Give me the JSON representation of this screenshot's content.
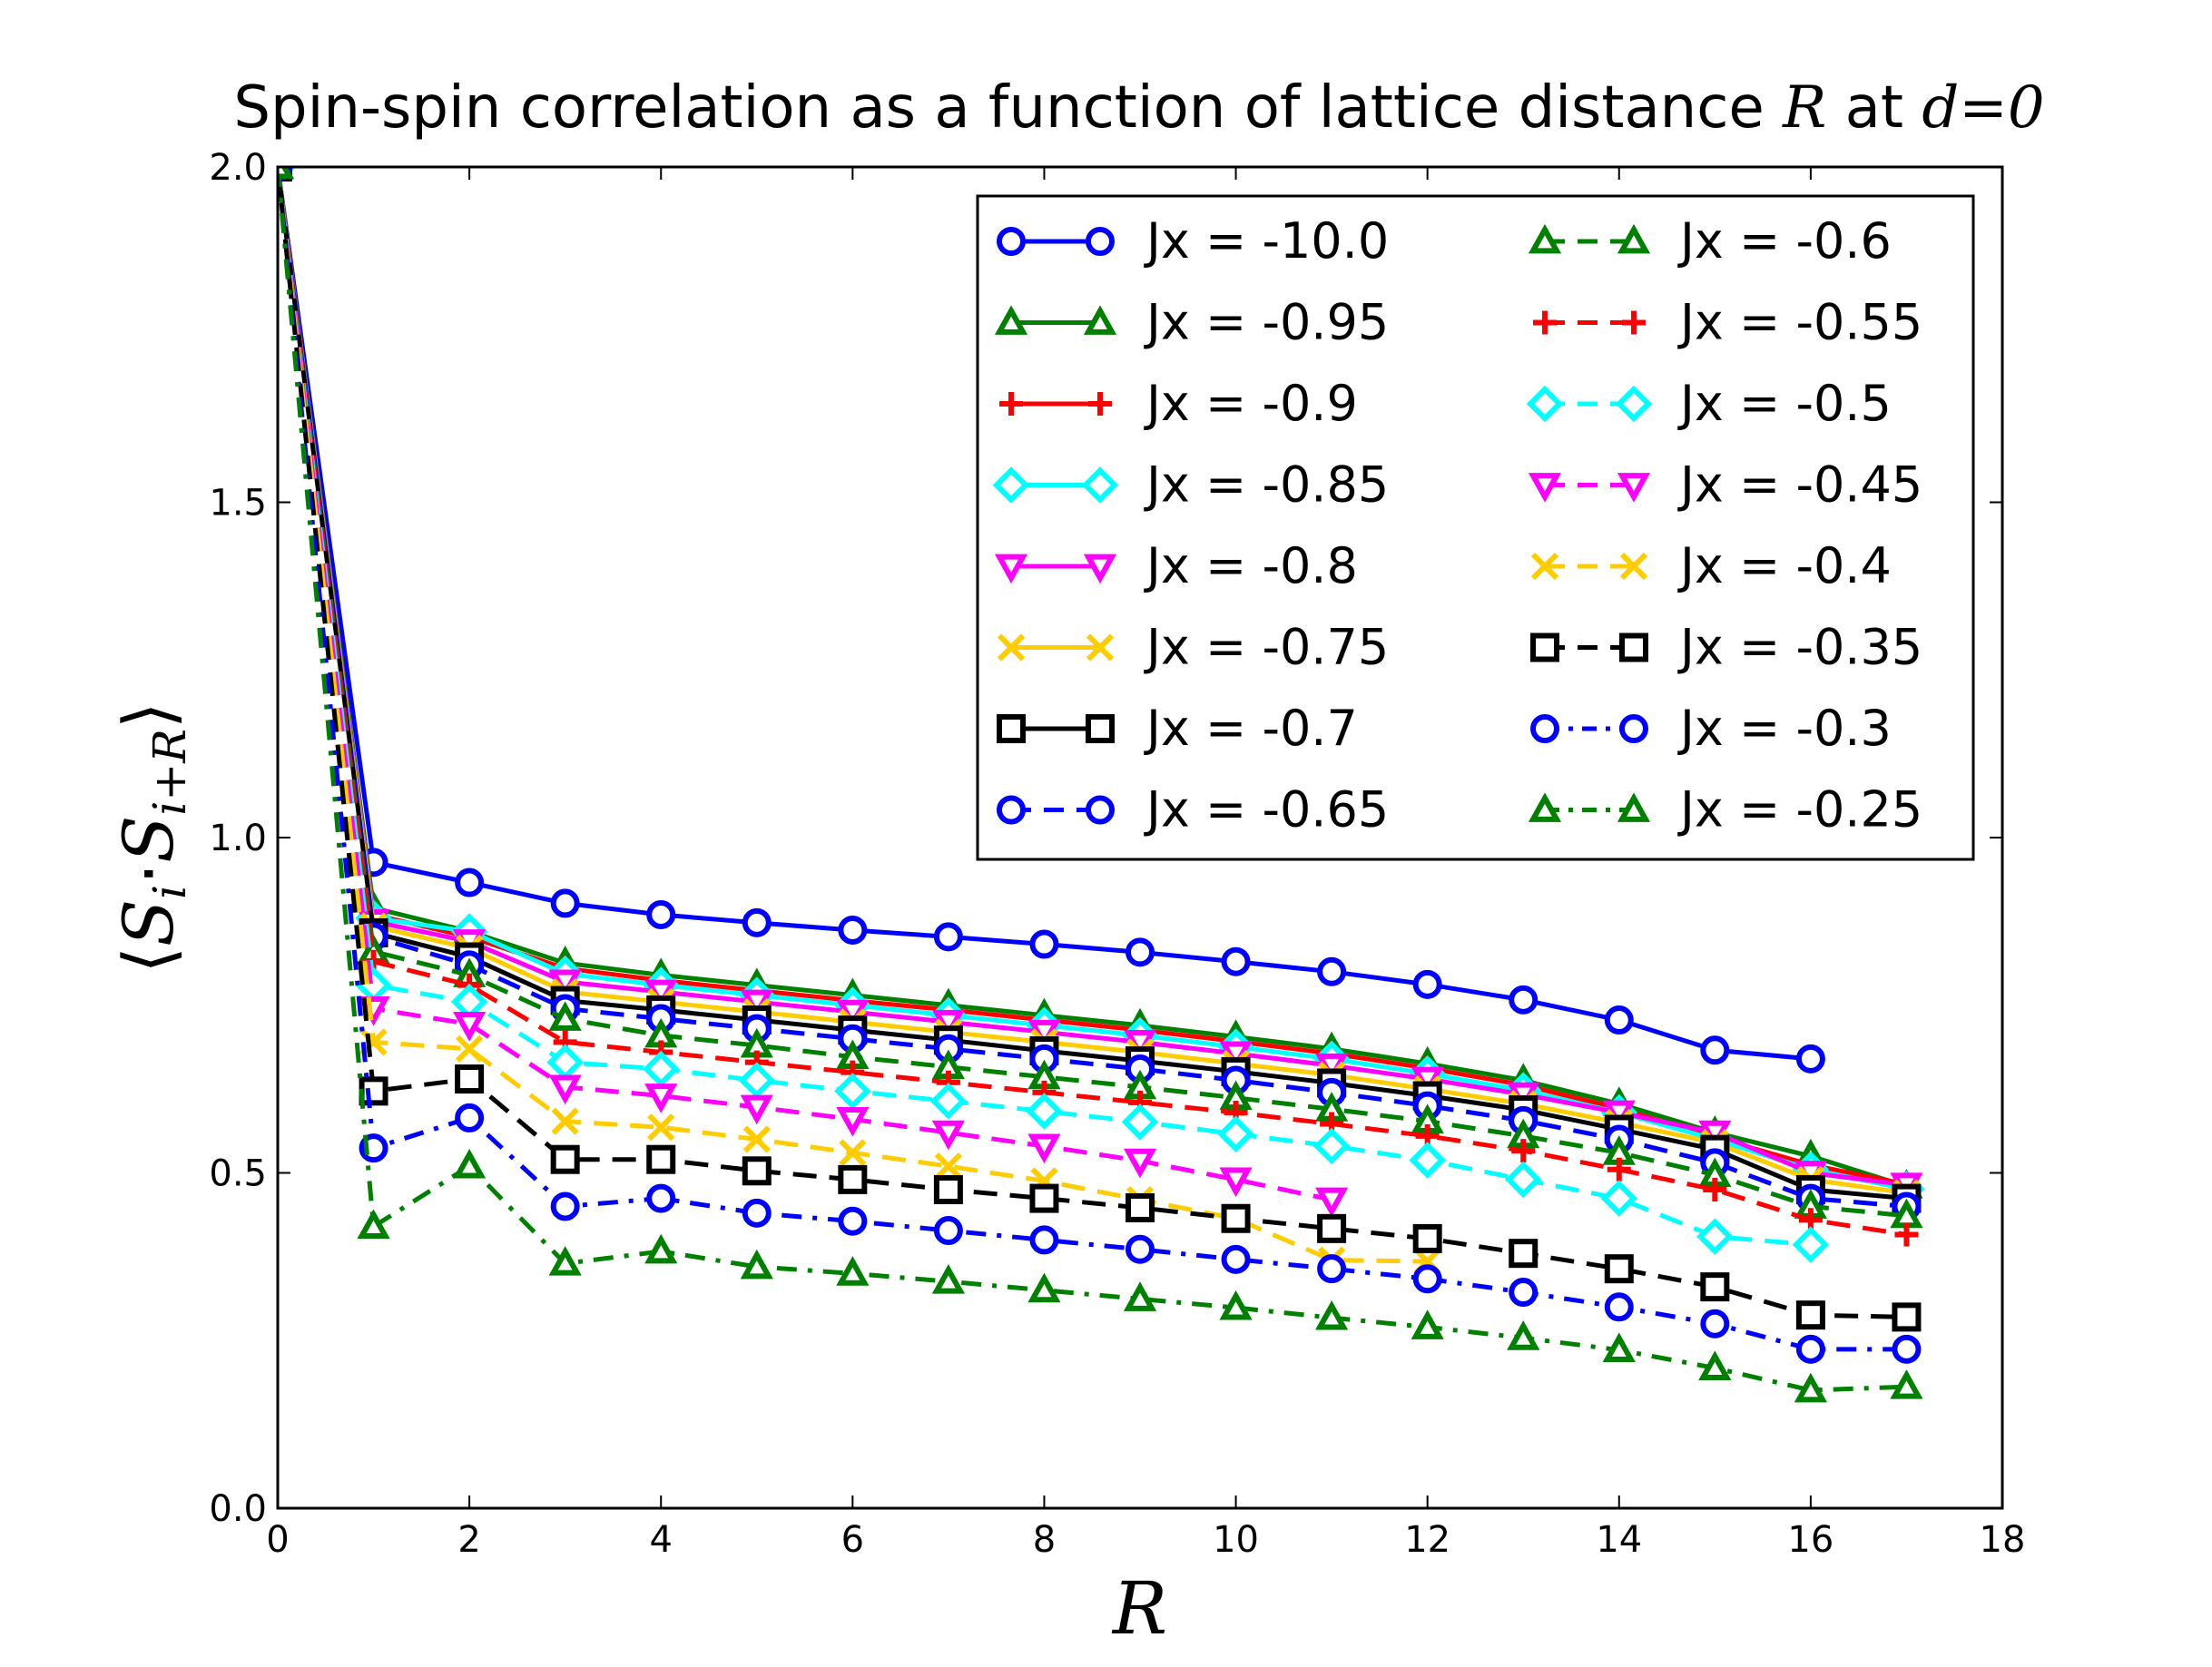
{
  "chart_data": {
    "type": "line",
    "title": "Spin-spin correlation as a function of lattice distance R at d=0",
    "title_parts": {
      "prefix": "Spin-spin correlation as a function of lattice distance ",
      "var": "R",
      "mid": " at ",
      "eq": "d=0"
    },
    "xlabel": "R",
    "ylabel": "⟨Sᵢ·Sᵢ₊R⟩",
    "ylabel_parts": {
      "open": "⟨",
      "s1": "S",
      "sub1": "i",
      "dot": "·",
      "s2": "S",
      "sub2": "i+R",
      "close": "⟩"
    },
    "xlim": [
      0,
      18
    ],
    "ylim": [
      0,
      2.0
    ],
    "xticks": [
      0,
      2,
      4,
      6,
      8,
      10,
      12,
      14,
      16,
      18
    ],
    "xtick_labels": [
      "0",
      "2",
      "4",
      "6",
      "8",
      "10",
      "12",
      "14",
      "16",
      "18"
    ],
    "yticks": [
      0,
      0.5,
      1.0,
      1.5,
      2.0
    ],
    "ytick_labels": [
      "0.0",
      "0.5",
      "1.0",
      "1.5",
      "2.0"
    ],
    "grid": false,
    "legend_position": "top-right",
    "legend_columns": 2,
    "series": [
      {
        "name": "Jx = -10.0",
        "color": "#0000ff",
        "marker": "circle",
        "dash": "solid",
        "x": [
          0,
          1,
          2,
          3,
          4,
          5,
          6,
          7,
          8,
          9,
          10,
          11,
          12,
          13,
          14,
          15,
          16
        ],
        "y": [
          2.0,
          0.963,
          0.933,
          0.902,
          0.885,
          0.873,
          0.862,
          0.852,
          0.841,
          0.829,
          0.815,
          0.8,
          0.781,
          0.758,
          0.728,
          0.683,
          0.67
        ]
      },
      {
        "name": "Jx = -0.95",
        "color": "#008000",
        "marker": "triangle-up",
        "dash": "solid",
        "x": [
          0,
          1,
          2,
          3,
          4,
          5,
          6,
          7,
          8,
          9,
          10,
          11,
          12,
          13,
          14,
          15,
          16,
          17
        ],
        "y": [
          2.0,
          0.895,
          0.86,
          0.813,
          0.795,
          0.78,
          0.765,
          0.75,
          0.735,
          0.72,
          0.703,
          0.685,
          0.663,
          0.638,
          0.603,
          0.56,
          0.525,
          0.48
        ]
      },
      {
        "name": "Jx = -0.9",
        "color": "#ff0000",
        "marker": "plus",
        "dash": "solid",
        "x": [
          0,
          1,
          2,
          3,
          4,
          5,
          6,
          7,
          8,
          9,
          10,
          11,
          12,
          13,
          14,
          15,
          16,
          17
        ],
        "y": [
          2.0,
          0.885,
          0.852,
          0.805,
          0.787,
          0.772,
          0.757,
          0.743,
          0.728,
          0.713,
          0.696,
          0.678,
          0.656,
          0.631,
          0.596,
          0.553,
          0.512,
          0.483
        ]
      },
      {
        "name": "Jx = -0.85",
        "color": "#00ffff",
        "marker": "diamond",
        "dash": "solid",
        "x": [
          0,
          1,
          2,
          3,
          4,
          5,
          6,
          7,
          8,
          9,
          10,
          11,
          12,
          13,
          14,
          15,
          16,
          17
        ],
        "y": [
          2.0,
          0.88,
          0.86,
          0.797,
          0.78,
          0.765,
          0.75,
          0.735,
          0.72,
          0.705,
          0.688,
          0.67,
          0.648,
          0.623,
          0.59,
          0.55,
          0.505,
          0.476
        ]
      },
      {
        "name": "Jx = -0.8",
        "color": "#ff00ff",
        "marker": "triangle-down",
        "dash": "solid",
        "x": [
          0,
          1,
          2,
          3,
          4,
          5,
          6,
          7,
          8,
          9,
          10,
          11,
          12,
          13,
          14,
          15,
          16,
          17
        ],
        "y": [
          2.0,
          0.875,
          0.845,
          0.785,
          0.77,
          0.755,
          0.74,
          0.725,
          0.71,
          0.695,
          0.678,
          0.66,
          0.64,
          0.617,
          0.59,
          0.56,
          0.5,
          0.482
        ]
      },
      {
        "name": "Jx = -0.75",
        "color": "#ffcc00",
        "marker": "x",
        "dash": "solid",
        "x": [
          0,
          1,
          2,
          3,
          4,
          5,
          6,
          7,
          8,
          9,
          10,
          11,
          12,
          13,
          14,
          15,
          16,
          17
        ],
        "y": [
          2.0,
          0.868,
          0.835,
          0.77,
          0.755,
          0.74,
          0.725,
          0.71,
          0.695,
          0.68,
          0.663,
          0.646,
          0.625,
          0.603,
          0.575,
          0.545,
          0.49,
          0.47
        ]
      },
      {
        "name": "Jx = -0.7",
        "color": "#000000",
        "marker": "square",
        "dash": "solid",
        "x": [
          0,
          1,
          2,
          3,
          4,
          5,
          6,
          7,
          8,
          9,
          10,
          11,
          12,
          13,
          14,
          15,
          16,
          17
        ],
        "y": [
          2.0,
          0.858,
          0.822,
          0.757,
          0.743,
          0.728,
          0.713,
          0.698,
          0.682,
          0.667,
          0.651,
          0.634,
          0.615,
          0.594,
          0.565,
          0.535,
          0.475,
          0.462
        ]
      },
      {
        "name": "Jx = -0.65",
        "color": "#0000ff",
        "marker": "circle",
        "dash": "dashed",
        "x": [
          0,
          1,
          2,
          3,
          4,
          5,
          6,
          7,
          8,
          9,
          10,
          11,
          12,
          13,
          14,
          15,
          16,
          17
        ],
        "y": [
          2.0,
          0.852,
          0.81,
          0.745,
          0.73,
          0.715,
          0.7,
          0.685,
          0.67,
          0.655,
          0.638,
          0.62,
          0.6,
          0.578,
          0.55,
          0.515,
          0.462,
          0.45
        ]
      },
      {
        "name": "Jx = -0.6",
        "color": "#008000",
        "marker": "triangle-up",
        "dash": "dashed",
        "x": [
          0,
          1,
          2,
          3,
          4,
          5,
          6,
          7,
          8,
          9,
          10,
          11,
          12,
          13,
          14,
          15,
          16,
          17
        ],
        "y": [
          2.0,
          0.83,
          0.795,
          0.73,
          0.705,
          0.69,
          0.673,
          0.658,
          0.643,
          0.628,
          0.612,
          0.595,
          0.577,
          0.555,
          0.53,
          0.497,
          0.45,
          0.436
        ]
      },
      {
        "name": "Jx = -0.55",
        "color": "#ff0000",
        "marker": "plus",
        "dash": "dashed",
        "x": [
          0,
          1,
          2,
          3,
          4,
          5,
          6,
          7,
          8,
          9,
          10,
          11,
          12,
          13,
          14,
          15,
          16,
          17
        ],
        "y": [
          2.0,
          0.815,
          0.78,
          0.695,
          0.68,
          0.665,
          0.65,
          0.635,
          0.62,
          0.605,
          0.59,
          0.573,
          0.555,
          0.533,
          0.505,
          0.475,
          0.43,
          0.408
        ]
      },
      {
        "name": "Jx = -0.5",
        "color": "#00ffff",
        "marker": "diamond",
        "dash": "dashed",
        "x": [
          0,
          1,
          2,
          3,
          4,
          5,
          6,
          7,
          8,
          9,
          10,
          11,
          12,
          13,
          14,
          15,
          16
        ],
        "y": [
          2.0,
          0.78,
          0.755,
          0.665,
          0.655,
          0.638,
          0.622,
          0.607,
          0.592,
          0.576,
          0.558,
          0.54,
          0.519,
          0.49,
          0.462,
          0.405,
          0.393
        ]
      },
      {
        "name": "Jx = -0.45",
        "color": "#ff00ff",
        "marker": "triangle-down",
        "dash": "dashed",
        "x": [
          0,
          1,
          2,
          3,
          4,
          5,
          6,
          7,
          8,
          9,
          10,
          11
        ],
        "y": [
          2.0,
          0.745,
          0.722,
          0.628,
          0.615,
          0.598,
          0.58,
          0.56,
          0.54,
          0.518,
          0.49,
          0.46
        ]
      },
      {
        "name": "Jx = -0.4",
        "color": "#ffcc00",
        "marker": "x",
        "dash": "dashed",
        "x": [
          0,
          1,
          2,
          3,
          4,
          5,
          6,
          7,
          8,
          9,
          10,
          11,
          12
        ],
        "y": [
          2.0,
          0.695,
          0.685,
          0.577,
          0.568,
          0.55,
          0.53,
          0.51,
          0.488,
          0.46,
          0.432,
          0.37,
          0.368
        ]
      },
      {
        "name": "Jx = -0.35",
        "color": "#000000",
        "marker": "square",
        "dash": "dashed",
        "x": [
          0,
          1,
          2,
          3,
          4,
          5,
          6,
          7,
          8,
          9,
          10,
          11,
          12,
          13,
          14,
          15,
          16,
          17
        ],
        "y": [
          2.0,
          0.622,
          0.64,
          0.52,
          0.52,
          0.503,
          0.49,
          0.475,
          0.462,
          0.448,
          0.432,
          0.417,
          0.402,
          0.38,
          0.357,
          0.33,
          0.288,
          0.285
        ]
      },
      {
        "name": "Jx = -0.3",
        "color": "#0000ff",
        "marker": "circle",
        "dash": "dashdot",
        "x": [
          0,
          1,
          2,
          3,
          4,
          5,
          6,
          7,
          8,
          9,
          10,
          11,
          12,
          13,
          14,
          15,
          16,
          17
        ],
        "y": [
          2.0,
          0.537,
          0.582,
          0.45,
          0.462,
          0.44,
          0.428,
          0.414,
          0.4,
          0.386,
          0.371,
          0.357,
          0.342,
          0.322,
          0.3,
          0.275,
          0.237,
          0.237
        ]
      },
      {
        "name": "Jx = -0.25",
        "color": "#008000",
        "marker": "triangle-up",
        "dash": "dashdot",
        "x": [
          0,
          1,
          2,
          3,
          4,
          5,
          6,
          7,
          8,
          9,
          10,
          11,
          12,
          13,
          14,
          15,
          16,
          17
        ],
        "y": [
          2.0,
          0.42,
          0.51,
          0.365,
          0.383,
          0.36,
          0.35,
          0.338,
          0.325,
          0.312,
          0.299,
          0.284,
          0.27,
          0.254,
          0.236,
          0.209,
          0.176,
          0.181
        ]
      }
    ]
  }
}
